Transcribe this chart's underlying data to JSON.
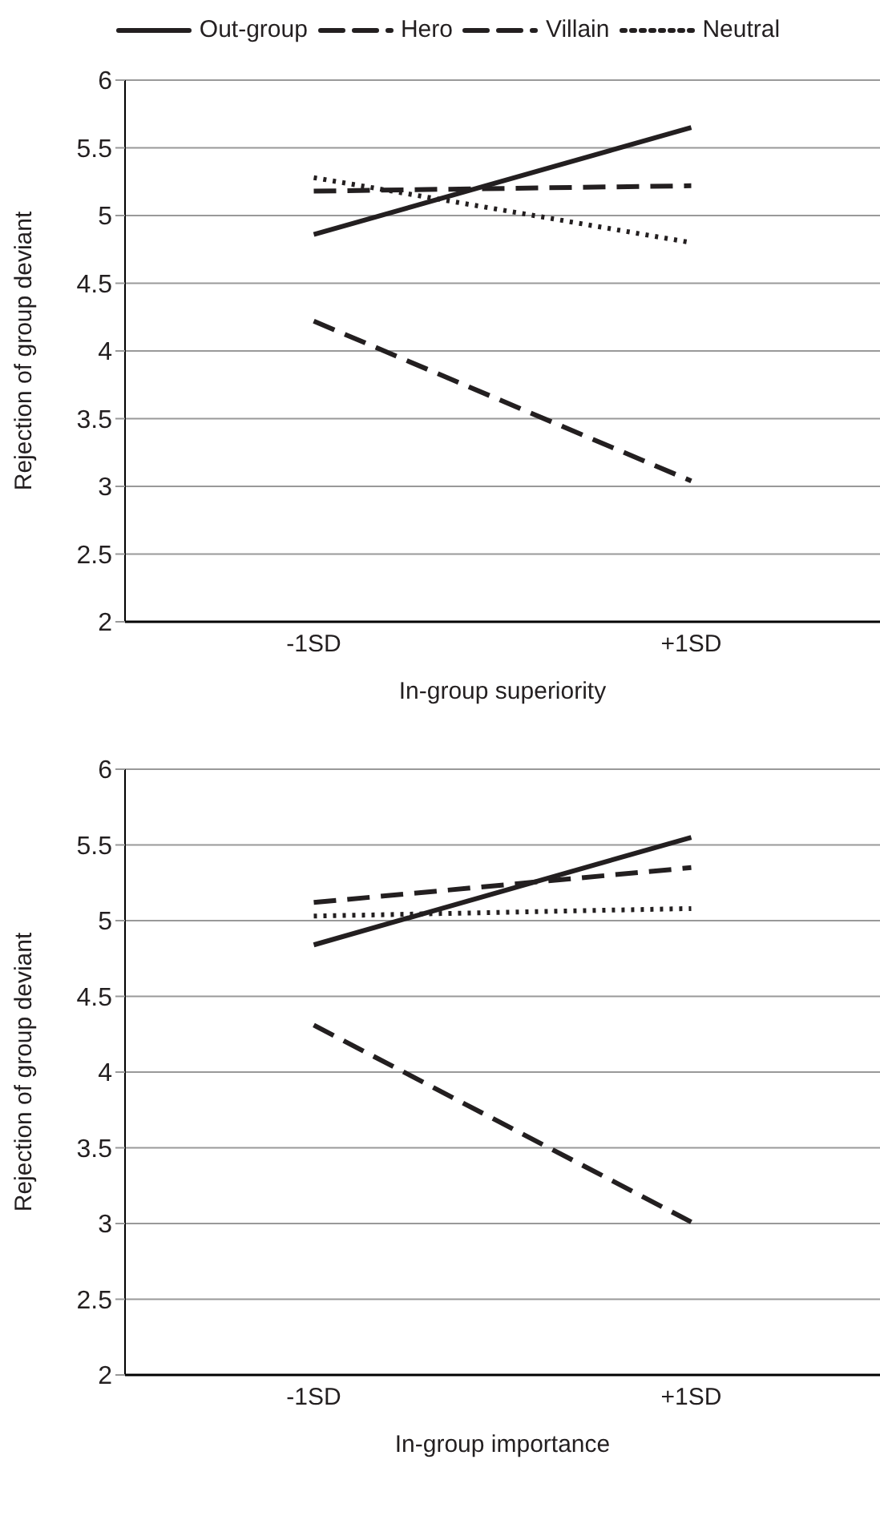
{
  "chart_data": [
    {
      "type": "line",
      "xlabel": "In-group superiority",
      "ylabel": "Rejection of group deviant",
      "categories": [
        "-1SD",
        "+1SD"
      ],
      "ylim": [
        2,
        6
      ],
      "yticks": [
        2,
        2.5,
        3,
        3.5,
        4,
        4.5,
        5,
        5.5,
        6
      ],
      "grid": "y",
      "legend": "top",
      "marker": "none",
      "series": [
        {
          "name": "Out-group",
          "color": "#231f20",
          "line_style": "solid",
          "values": [
            4.86,
            5.65
          ]
        },
        {
          "name": "Hero",
          "color": "#231f20",
          "line_style": "dashed",
          "values": [
            4.22,
            3.04
          ]
        },
        {
          "name": "Villain",
          "color": "#231f20",
          "line_style": "dashed",
          "values": [
            5.18,
            5.22
          ]
        },
        {
          "name": "Neutral",
          "color": "#231f20",
          "line_style": "dotted",
          "values": [
            5.28,
            4.8
          ]
        }
      ]
    },
    {
      "type": "line",
      "xlabel": "In-group importance",
      "ylabel": "Rejection of group deviant",
      "categories": [
        "-1SD",
        "+1SD"
      ],
      "ylim": [
        2,
        6
      ],
      "yticks": [
        2,
        2.5,
        3,
        3.5,
        4,
        4.5,
        5,
        5.5,
        6
      ],
      "grid": "y",
      "marker": "none",
      "series": [
        {
          "color": "#231f20",
          "line_style": "solid",
          "values": [
            4.84,
            5.55
          ]
        },
        {
          "color": "#231f20",
          "line_style": "dashed",
          "values": [
            4.31,
            3.01
          ]
        },
        {
          "color": "#231f20",
          "line_style": "dashed",
          "values": [
            5.12,
            5.35
          ]
        },
        {
          "color": "#231f20",
          "line_style": "dotted",
          "values": [
            5.03,
            5.08
          ]
        }
      ]
    }
  ]
}
